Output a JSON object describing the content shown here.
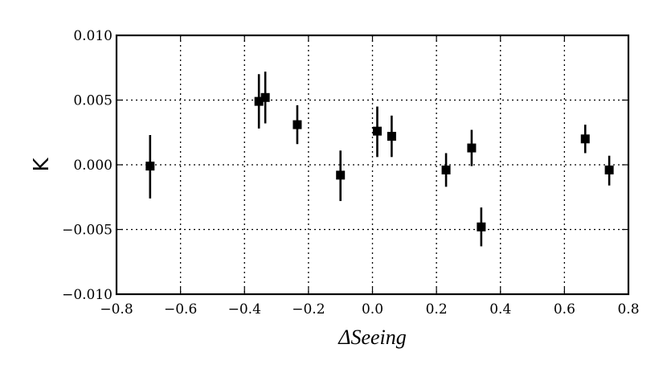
{
  "chart_data": {
    "type": "scatter",
    "title": "",
    "xlabel": "ΔSeeing",
    "ylabel": "K",
    "xlim": [
      -0.8,
      0.8
    ],
    "ylim": [
      -0.01,
      0.01
    ],
    "xticks": [
      -0.8,
      -0.6,
      -0.4,
      -0.2,
      0.0,
      0.2,
      0.4,
      0.6,
      0.8
    ],
    "yticks": [
      -0.01,
      -0.005,
      0.0,
      0.005,
      0.01
    ],
    "xtick_labels": [
      "−0.8",
      "−0.6",
      "−0.4",
      "−0.2",
      "0.0",
      "0.2",
      "0.4",
      "0.6",
      "0.8"
    ],
    "ytick_labels": [
      "−0.010",
      "−0.005",
      "0.000",
      "0.005",
      "0.010"
    ],
    "grid": true,
    "grid_style": "dotted",
    "marker": "square",
    "color": "#000000",
    "points": [
      {
        "x": -0.695,
        "y": -0.0001,
        "yerr_low": -0.0026,
        "yerr_high": 0.0023
      },
      {
        "x": -0.355,
        "y": 0.0049,
        "yerr_low": 0.0028,
        "yerr_high": 0.007
      },
      {
        "x": -0.335,
        "y": 0.0052,
        "yerr_low": 0.0032,
        "yerr_high": 0.0072
      },
      {
        "x": -0.235,
        "y": 0.0031,
        "yerr_low": 0.0016,
        "yerr_high": 0.0046
      },
      {
        "x": -0.1,
        "y": -0.0008,
        "yerr_low": -0.0028,
        "yerr_high": 0.0011
      },
      {
        "x": 0.015,
        "y": 0.0026,
        "yerr_low": 0.0006,
        "yerr_high": 0.0045
      },
      {
        "x": 0.06,
        "y": 0.0022,
        "yerr_low": 0.0006,
        "yerr_high": 0.0038
      },
      {
        "x": 0.23,
        "y": -0.0004,
        "yerr_low": -0.0017,
        "yerr_high": 0.0009
      },
      {
        "x": 0.31,
        "y": 0.0013,
        "yerr_low": -0.0001,
        "yerr_high": 0.0027
      },
      {
        "x": 0.34,
        "y": -0.0048,
        "yerr_low": -0.0063,
        "yerr_high": -0.0033
      },
      {
        "x": 0.665,
        "y": 0.002,
        "yerr_low": 0.0009,
        "yerr_high": 0.0031
      },
      {
        "x": 0.74,
        "y": -0.0004,
        "yerr_low": -0.0016,
        "yerr_high": 0.0007
      }
    ]
  }
}
